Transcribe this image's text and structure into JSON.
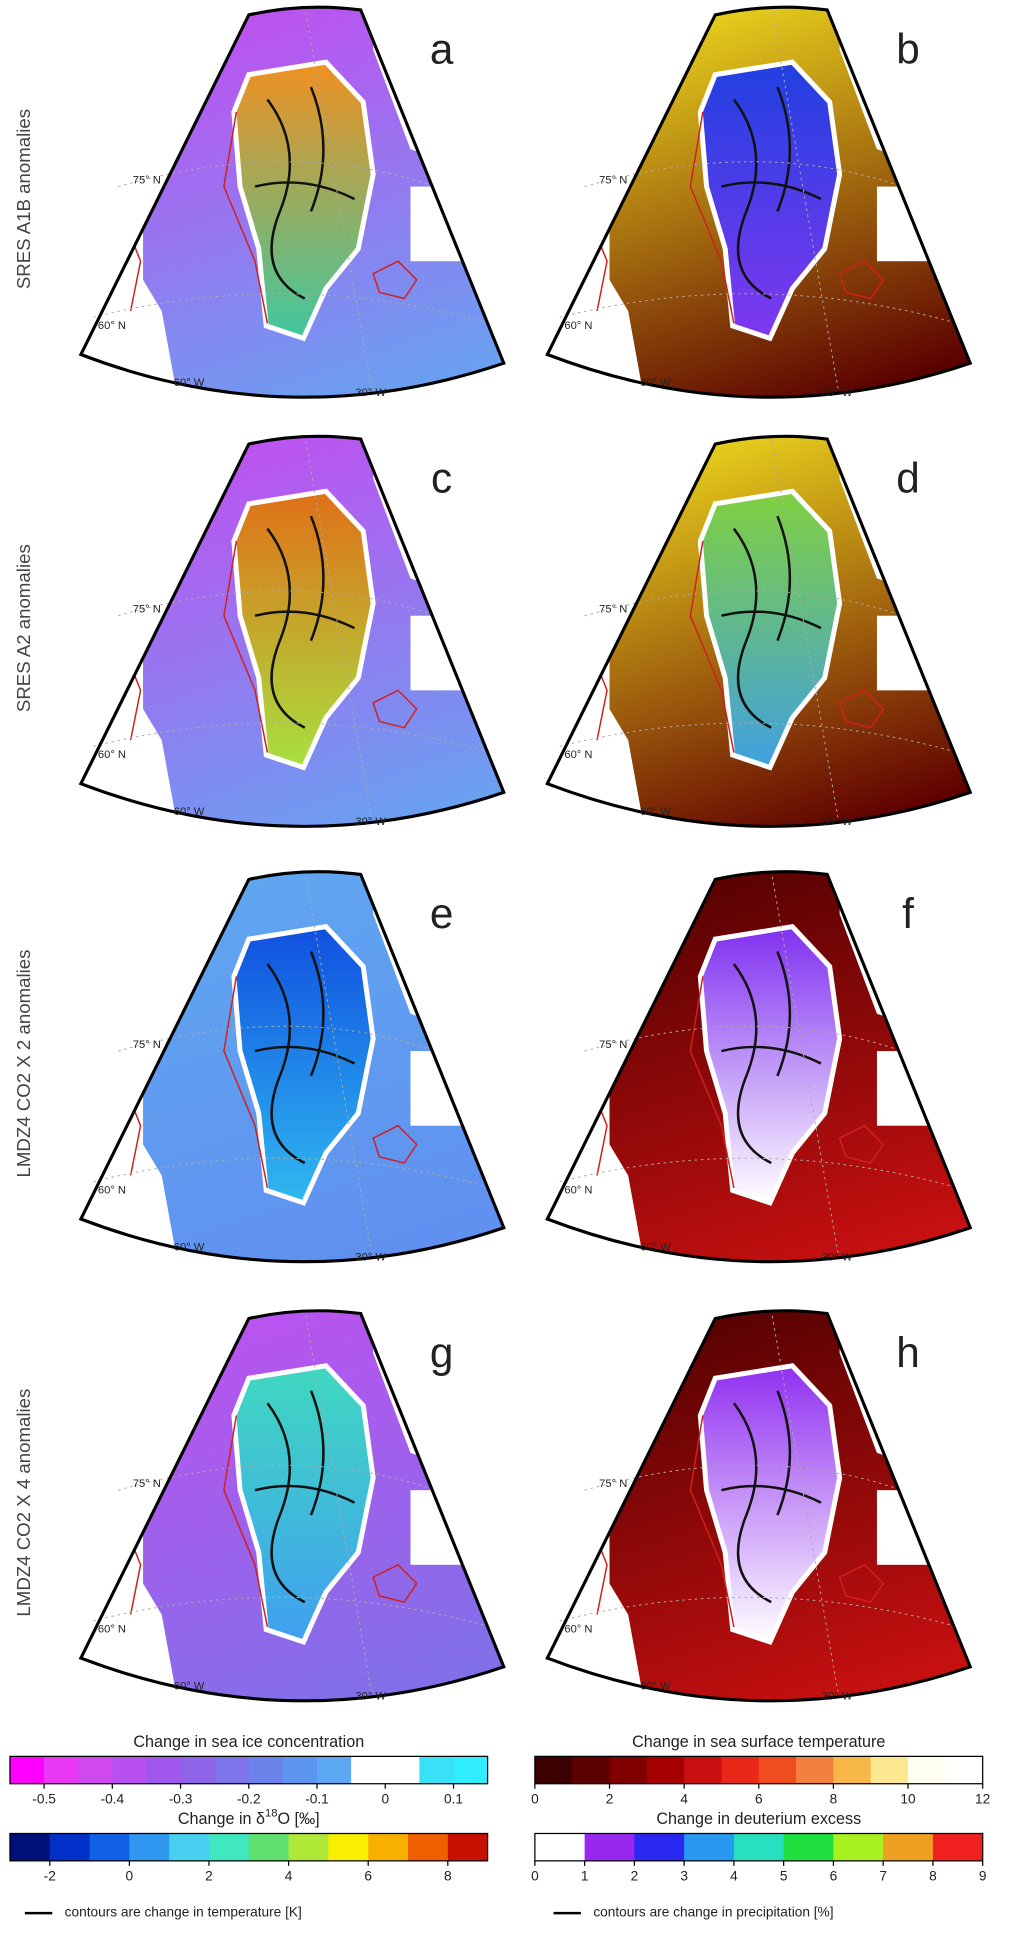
{
  "row_labels": [
    "SRES A1B anomalies",
    "SRES A2 anomalies",
    "LMDZ4 CO2 X 2 anomalies",
    "LMDZ4 CO2 X 4 anomalies"
  ],
  "panels": [
    {
      "letter": "a",
      "lat75": "75° N",
      "lat60": "60° N",
      "lon60": "60° W",
      "lon30": "30° W"
    },
    {
      "letter": "b",
      "lat75": "75° N",
      "lat60": "60° N",
      "lon60": "60° W",
      "lon30": "30° W"
    },
    {
      "letter": "c",
      "lat75": "75° N",
      "lat60": "60° N",
      "lon60": "60° W",
      "lon30": "30° W"
    },
    {
      "letter": "d",
      "lat75": "75° N",
      "lat60": "60° N",
      "lon60": "60° W",
      "lon30": "30° W"
    },
    {
      "letter": "e",
      "lat75": "75° N",
      "lat60": "60° N",
      "lon60": "60° W",
      "lon30": "30° W"
    },
    {
      "letter": "f",
      "lat75": "75° N",
      "lat60": "60° N",
      "lon60": "60° W",
      "lon30": "30° W"
    },
    {
      "letter": "g",
      "lat75": "75° N",
      "lat60": "60° N",
      "lon60": "60° W",
      "lon30": "30° W"
    },
    {
      "letter": "h",
      "lat75": "75° N",
      "lat60": "60° N",
      "lon60": "60° W",
      "lon30": "30° W"
    }
  ],
  "colorbars": [
    {
      "title": "Change in sea ice concentration",
      "lim": [
        -0.55,
        0.15
      ],
      "ticks": [
        -0.5,
        -0.4,
        -0.3,
        -0.2,
        -0.1,
        0,
        0.1
      ],
      "colors": [
        "#ff00ff",
        "#e838f4",
        "#d048f0",
        "#b850f0",
        "#a058ec",
        "#9064e8",
        "#7c74e8",
        "#6a84ec",
        "#5c96f0",
        "#5ca8f4",
        "#ffffff",
        "#ffffff",
        "#38e0f8",
        "#30ecff"
      ]
    },
    {
      "title_prefix": "Change in δ",
      "title_sup": "18",
      "title_suffix": "O [‰]",
      "lim": [
        -3,
        9
      ],
      "ticks": [
        -2,
        0,
        2,
        4,
        6,
        8
      ],
      "colors": [
        "#00107a",
        "#0030c8",
        "#1060e8",
        "#3098f0",
        "#48d0f0",
        "#40e8c0",
        "#60e070",
        "#b0e838",
        "#f8f000",
        "#f8b000",
        "#f06000",
        "#c81000"
      ]
    },
    {
      "title": "Change in sea surface temperature",
      "lim": [
        0,
        12
      ],
      "ticks": [
        0,
        2,
        4,
        6,
        8,
        10,
        12
      ],
      "colors": [
        "#3c0000",
        "#5c0000",
        "#800000",
        "#a40000",
        "#c81010",
        "#e82818",
        "#f04c20",
        "#f48040",
        "#f8b848",
        "#fce890",
        "#fffff0",
        "#ffffff"
      ]
    },
    {
      "title": "Change in deuterium excess",
      "lim": [
        0,
        9
      ],
      "ticks": [
        0,
        1,
        2,
        3,
        4,
        5,
        6,
        7,
        8,
        9
      ],
      "colors": [
        "#ffffff",
        "#9828f0",
        "#2828f0",
        "#2898f0",
        "#28e0c0",
        "#20e040",
        "#a8f020",
        "#f0a020",
        "#f02020"
      ]
    }
  ],
  "legends": [
    {
      "text": "contours are change in temperature [K]"
    },
    {
      "text": "contours are change in precipitation [%]"
    }
  ]
}
